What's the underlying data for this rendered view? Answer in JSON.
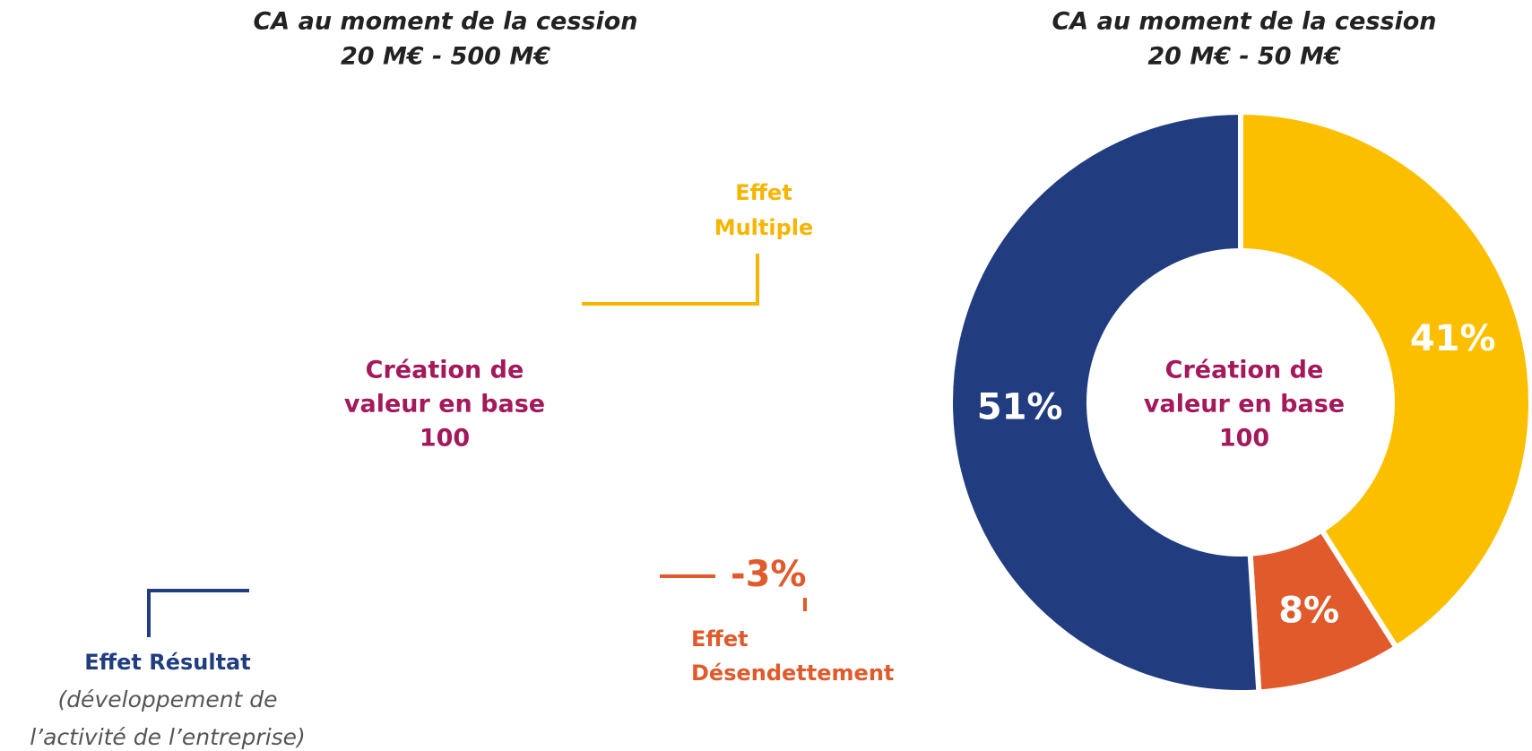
{
  "chart_data": [
    {
      "type": "annotated",
      "title": "CA au moment de la cession",
      "subtitle": "20 M€ - 500 M€",
      "center_label": [
        "Création de",
        "valeur en base",
        "100"
      ],
      "annotations": {
        "multiple": [
          "Effet",
          "Multiple"
        ],
        "desendettement": [
          "Effet",
          "Désendettement"
        ],
        "resultat": [
          "Effet Résultat",
          "(développement de",
          "l’activité de l’entreprise)"
        ]
      },
      "values": [
        -3
      ],
      "value_labels": [
        "-3%"
      ],
      "colors": {
        "multiple": "#f7b500",
        "desendettement": "#e05a2b",
        "resultat": "#213d80",
        "center": "#a3195b",
        "note": "#555555"
      }
    },
    {
      "type": "donut",
      "title": "CA au moment de la cession",
      "subtitle": "20 M€ - 50 M€",
      "center_label": [
        "Création de",
        "valeur en base",
        "100"
      ],
      "values": [
        41,
        8,
        51
      ],
      "value_labels": [
        "41%",
        "8%",
        "51%"
      ],
      "colors": [
        "#fbbf00",
        "#e05a2b",
        "#213d80"
      ],
      "center_color": "#a3195b"
    }
  ]
}
